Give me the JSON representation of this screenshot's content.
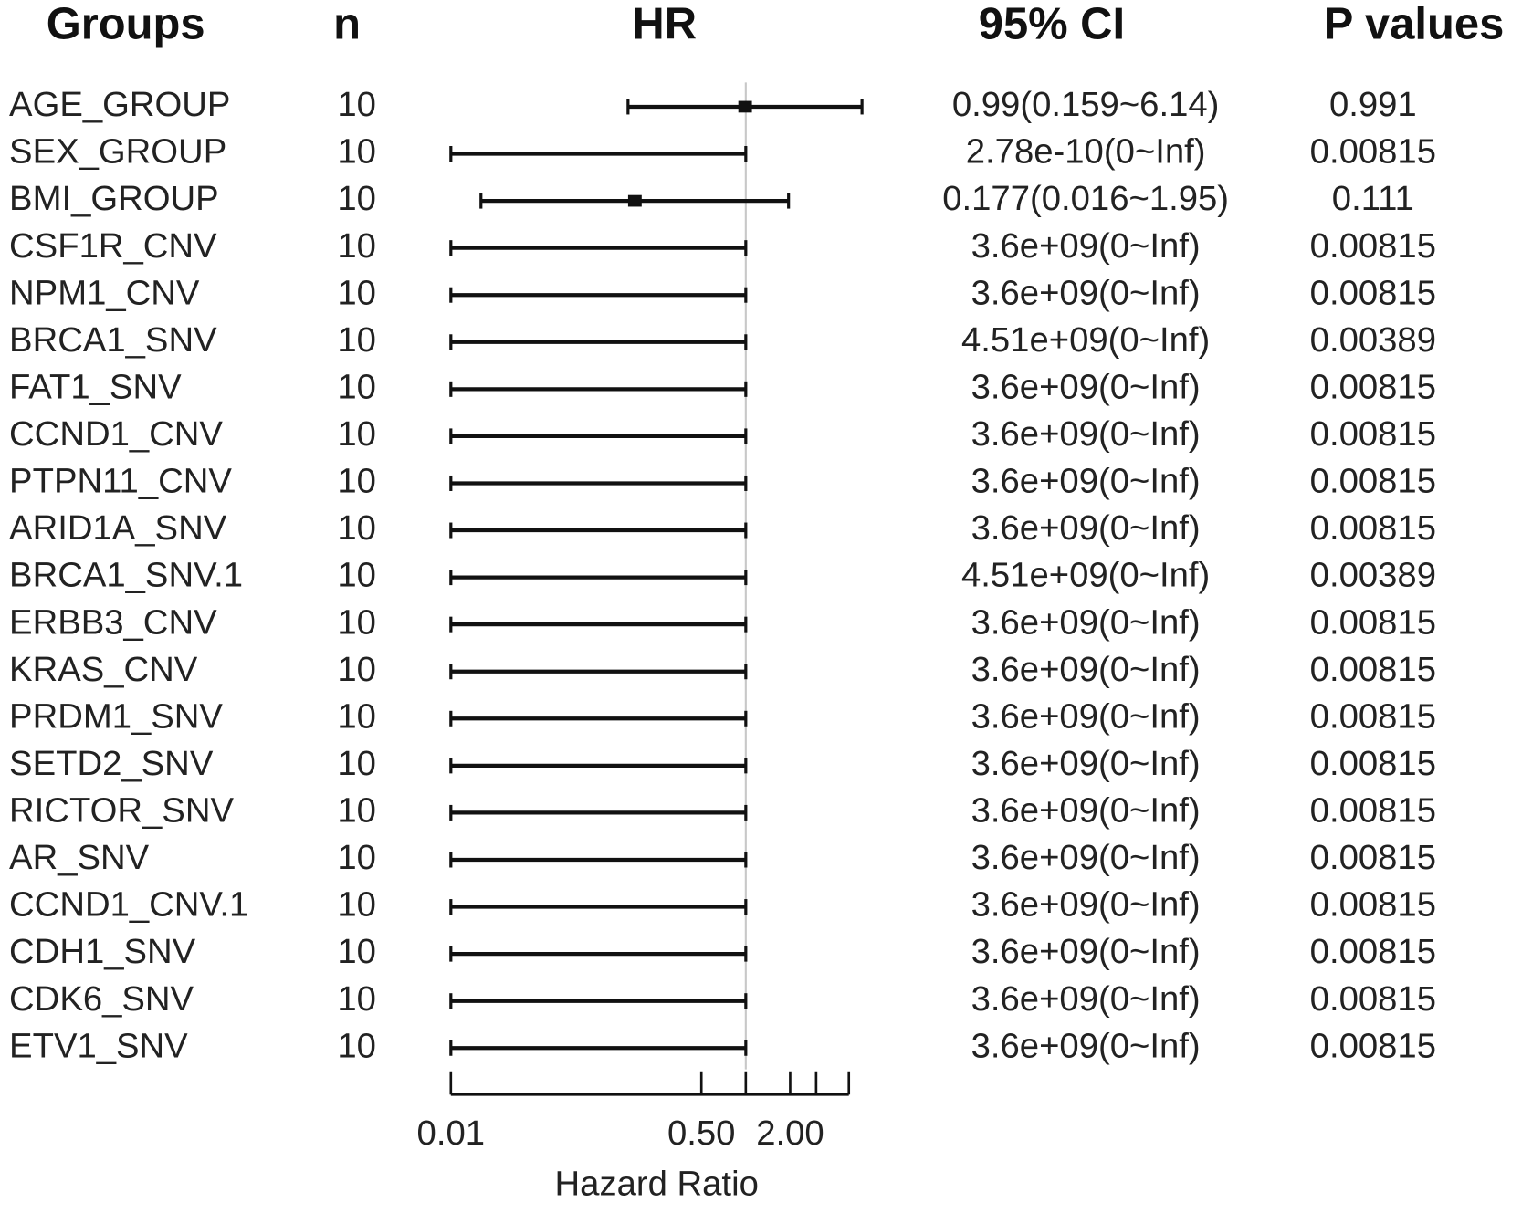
{
  "chart_data": {
    "type": "forest",
    "columns": [
      "Groups",
      "n",
      "HR",
      "95% CI",
      "P values"
    ],
    "categories": [
      "AGE_GROUP",
      "SEX_GROUP",
      "BMI_GROUP",
      "CSF1R_CNV",
      "NPM1_CNV",
      "BRCA1_SNV",
      "FAT1_SNV",
      "CCND1_CNV",
      "PTPN11_CNV",
      "ARID1A_SNV",
      "BRCA1_SNV.1",
      "ERBB3_CNV",
      "KRAS_CNV",
      "PRDM1_SNV",
      "SETD2_SNV",
      "RICTOR_SNV",
      "AR_SNV",
      "CCND1_CNV.1",
      "CDH1_SNV",
      "CDK6_SNV",
      "ETV1_SNV"
    ],
    "n": [
      10,
      10,
      10,
      10,
      10,
      10,
      10,
      10,
      10,
      10,
      10,
      10,
      10,
      10,
      10,
      10,
      10,
      10,
      10,
      10,
      10
    ],
    "hr": [
      0.99,
      null,
      0.177,
      null,
      null,
      null,
      null,
      null,
      null,
      null,
      null,
      null,
      null,
      null,
      null,
      null,
      null,
      null,
      null,
      null,
      null
    ],
    "ci_low": [
      0.159,
      0.01,
      0.016,
      0.01,
      0.01,
      0.01,
      0.01,
      0.01,
      0.01,
      0.01,
      0.01,
      0.01,
      0.01,
      0.01,
      0.01,
      0.01,
      0.01,
      0.01,
      0.01,
      0.01,
      0.01
    ],
    "ci_high": [
      6.14,
      1,
      1.95,
      1,
      1,
      1,
      1,
      1,
      1,
      1,
      1,
      1,
      1,
      1,
      1,
      1,
      1,
      1,
      1,
      1,
      1
    ],
    "ci_text": [
      "0.99(0.159~6.14)",
      "2.78e-10(0~Inf)",
      "0.177(0.016~1.95)",
      "3.6e+09(0~Inf)",
      "3.6e+09(0~Inf)",
      "4.51e+09(0~Inf)",
      "3.6e+09(0~Inf)",
      "3.6e+09(0~Inf)",
      "3.6e+09(0~Inf)",
      "3.6e+09(0~Inf)",
      "4.51e+09(0~Inf)",
      "3.6e+09(0~Inf)",
      "3.6e+09(0~Inf)",
      "3.6e+09(0~Inf)",
      "3.6e+09(0~Inf)",
      "3.6e+09(0~Inf)",
      "3.6e+09(0~Inf)",
      "3.6e+09(0~Inf)",
      "3.6e+09(0~Inf)",
      "3.6e+09(0~Inf)",
      "3.6e+09(0~Inf)"
    ],
    "p_values": [
      0.991,
      0.00815,
      0.111,
      0.00815,
      0.00815,
      0.00389,
      0.00815,
      0.00815,
      0.00815,
      0.00815,
      0.00389,
      0.00815,
      0.00815,
      0.00815,
      0.00815,
      0.00815,
      0.00815,
      0.00815,
      0.00815,
      0.00815,
      0.00815
    ],
    "xlabel": "Hazard Ratio",
    "xscale": "log",
    "xlim": [
      0.01,
      5
    ],
    "xticks": [
      {
        "value": 0.01,
        "label": "0.01"
      },
      {
        "value": 0.5,
        "label": "0.50"
      },
      {
        "value": 1,
        "label": null
      },
      {
        "value": 2,
        "label": "2.00"
      },
      {
        "value": 3,
        "label": null
      },
      {
        "value": 5,
        "label": null
      }
    ],
    "reference_line": 1,
    "color": "#111111"
  }
}
